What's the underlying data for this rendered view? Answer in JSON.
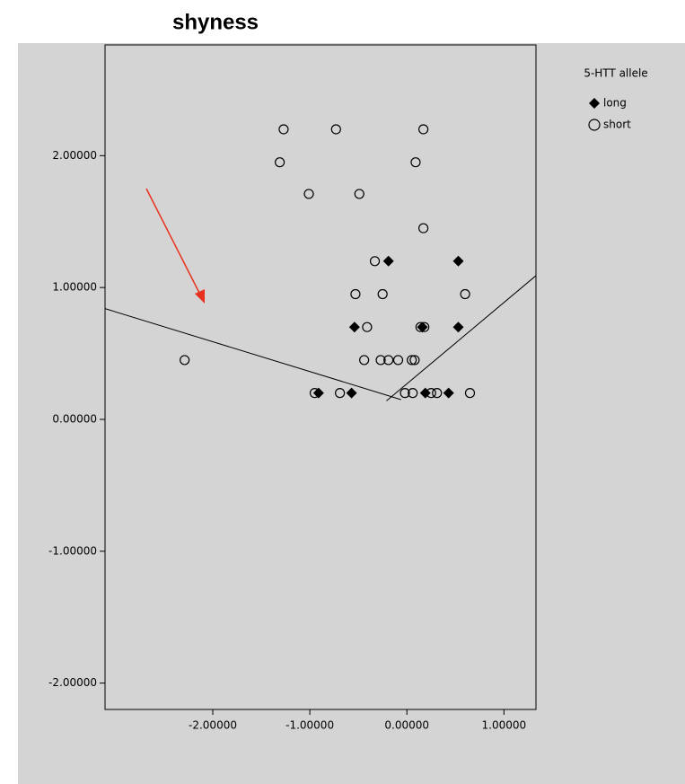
{
  "chart_data": {
    "type": "scatter",
    "title": "shyness",
    "legend_title": "5-HTT allele",
    "legend": "right",
    "xlim": [
      -3.11,
      1.33
    ],
    "ylim": [
      -2.2,
      2.84
    ],
    "xticks": [
      {
        "value": -2,
        "label": "-2.00000"
      },
      {
        "value": -1,
        "label": "-1.00000"
      },
      {
        "value": 0,
        "label": "0.00000"
      },
      {
        "value": 1,
        "label": "1.00000"
      }
    ],
    "yticks": [
      {
        "value": -2,
        "label": "-2.00000"
      },
      {
        "value": -1,
        "label": "-1.00000"
      },
      {
        "value": 0,
        "label": "0.00000"
      },
      {
        "value": 1,
        "label": "1.00000"
      },
      {
        "value": 2,
        "label": "2.00000"
      }
    ],
    "series": [
      {
        "name": "long",
        "marker": "diamond",
        "color": "#000000",
        "x": [
          -0.19,
          0.53,
          -0.54,
          0.16,
          0.53,
          -0.91,
          -0.57,
          0.19,
          0.43
        ],
        "values": [
          1.2,
          1.2,
          0.7,
          0.7,
          0.7,
          0.2,
          0.2,
          0.2,
          0.2
        ]
      },
      {
        "name": "short",
        "marker": "circle",
        "color": "#000000",
        "x": [
          -1.27,
          -0.73,
          0.17,
          -1.31,
          0.09,
          -1.01,
          -0.49,
          0.17,
          -0.33,
          -0.53,
          -0.25,
          0.6,
          -0.41,
          0.14,
          0.18,
          -2.29,
          -0.44,
          -0.27,
          -0.19,
          -0.09,
          0.05,
          0.08,
          -0.95,
          -0.69,
          -0.02,
          0.06,
          0.25,
          0.31,
          0.65
        ],
        "values": [
          2.2,
          2.2,
          2.2,
          1.95,
          1.95,
          1.71,
          1.71,
          1.45,
          1.2,
          0.95,
          0.95,
          0.95,
          0.7,
          0.7,
          0.7,
          0.45,
          0.45,
          0.45,
          0.45,
          0.45,
          0.45,
          0.45,
          0.2,
          0.2,
          0.2,
          0.2,
          0.2,
          0.2,
          0.2
        ]
      }
    ],
    "fit_lines": [
      {
        "x": [
          -3.11,
          -0.06
        ],
        "values": [
          0.84,
          0.15
        ]
      },
      {
        "x": [
          -0.21,
          1.33
        ],
        "values": [
          0.14,
          1.09
        ]
      }
    ]
  }
}
